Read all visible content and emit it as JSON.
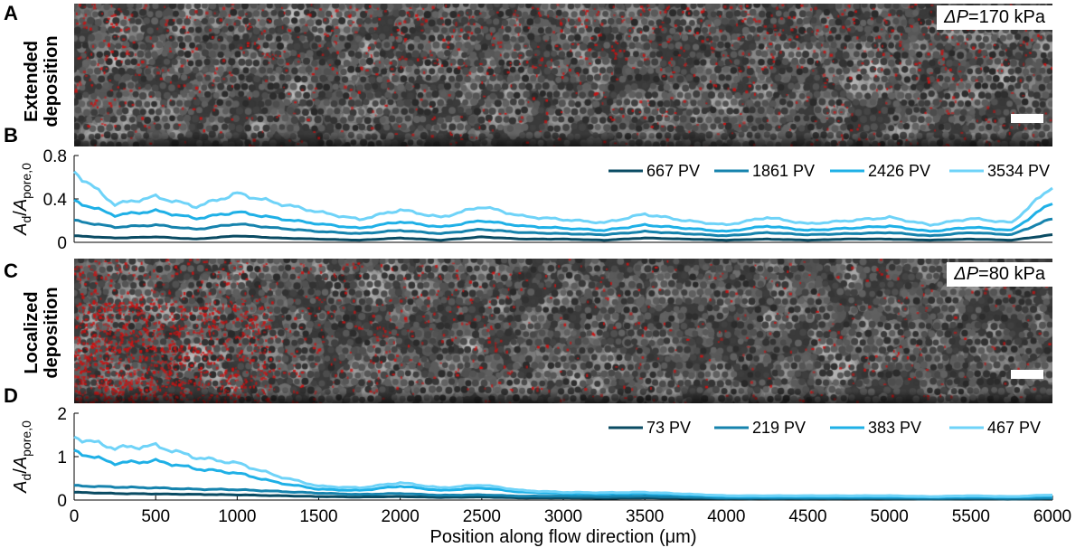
{
  "panels": {
    "a": {
      "letter": "A",
      "row_label_1": "Extended",
      "row_label_2": "deposition",
      "dp_prefix": "ΔP",
      "dp_value": "=170 kPa"
    },
    "b": {
      "letter": "B"
    },
    "c": {
      "letter": "C",
      "row_label_1": "Localized",
      "row_label_2": "deposition",
      "dp_prefix": "ΔP",
      "dp_value": "=80 kPa"
    },
    "d": {
      "letter": "D"
    }
  },
  "colors": {
    "s1": "#0a4b63",
    "s2": "#1683ad",
    "s3": "#1fb0e6",
    "s4": "#6fd3f8",
    "deposit": "#d01010"
  },
  "chart_data": [
    {
      "type": "line",
      "panel": "B",
      "xlim": [
        0,
        6000
      ],
      "ylim": [
        0,
        0.8
      ],
      "yticks": [
        0,
        0.4,
        0.8
      ],
      "ytick_labels": [
        "0",
        "0.4",
        "0.8"
      ],
      "ylabel": "Ad/Apore,0",
      "legend_position": "top-right",
      "x": [
        0,
        250,
        500,
        750,
        1000,
        1250,
        1500,
        1750,
        2000,
        2250,
        2500,
        2750,
        3000,
        3250,
        3500,
        3750,
        4000,
        4250,
        4500,
        4750,
        5000,
        5250,
        5500,
        5750,
        6000
      ],
      "series": [
        {
          "name": "667 PV",
          "color": "#0a4b63",
          "values": [
            0.06,
            0.04,
            0.05,
            0.03,
            0.06,
            0.04,
            0.03,
            0.02,
            0.04,
            0.02,
            0.05,
            0.03,
            0.03,
            0.02,
            0.04,
            0.03,
            0.02,
            0.03,
            0.02,
            0.03,
            0.03,
            0.02,
            0.03,
            0.02,
            0.07
          ]
        },
        {
          "name": "1861 PV",
          "color": "#1683ad",
          "values": [
            0.2,
            0.14,
            0.16,
            0.12,
            0.17,
            0.13,
            0.1,
            0.08,
            0.11,
            0.08,
            0.12,
            0.09,
            0.08,
            0.07,
            0.1,
            0.08,
            0.06,
            0.09,
            0.07,
            0.08,
            0.09,
            0.06,
            0.09,
            0.07,
            0.22
          ]
        },
        {
          "name": "2426 PV",
          "color": "#1fb0e6",
          "values": [
            0.38,
            0.25,
            0.29,
            0.22,
            0.28,
            0.22,
            0.17,
            0.13,
            0.19,
            0.14,
            0.2,
            0.15,
            0.13,
            0.11,
            0.16,
            0.13,
            0.1,
            0.15,
            0.11,
            0.13,
            0.15,
            0.1,
            0.14,
            0.11,
            0.37
          ]
        },
        {
          "name": "3534 PV",
          "color": "#6fd3f8",
          "values": [
            0.65,
            0.35,
            0.42,
            0.33,
            0.45,
            0.36,
            0.28,
            0.21,
            0.3,
            0.23,
            0.33,
            0.24,
            0.21,
            0.18,
            0.26,
            0.2,
            0.16,
            0.23,
            0.17,
            0.2,
            0.23,
            0.16,
            0.22,
            0.18,
            0.52
          ]
        }
      ]
    },
    {
      "type": "line",
      "panel": "D",
      "xlim": [
        0,
        6000
      ],
      "ylim": [
        0,
        2
      ],
      "yticks": [
        0,
        1,
        2
      ],
      "ytick_labels": [
        "0",
        "1",
        "2"
      ],
      "ylabel": "Ad/Apore,0",
      "xlabel": "Position along flow direction (μm)",
      "xticks": [
        0,
        500,
        1000,
        1500,
        2000,
        2500,
        3000,
        3500,
        4000,
        4500,
        5000,
        5500,
        6000
      ],
      "xtick_labels": [
        "0",
        "500",
        "1000",
        "1500",
        "2000",
        "2500",
        "3000",
        "3500",
        "4000",
        "4500",
        "5000",
        "5500",
        "6000"
      ],
      "legend_position": "top-right",
      "x": [
        0,
        250,
        500,
        750,
        1000,
        1250,
        1500,
        1750,
        2000,
        2250,
        2500,
        2750,
        3000,
        3250,
        3500,
        3750,
        4000,
        4250,
        4500,
        4750,
        5000,
        5250,
        5500,
        5750,
        6000
      ],
      "series": [
        {
          "name": "73 PV",
          "color": "#0a4b63",
          "values": [
            0.18,
            0.15,
            0.14,
            0.13,
            0.12,
            0.1,
            0.08,
            0.07,
            0.08,
            0.06,
            0.07,
            0.05,
            0.05,
            0.04,
            0.05,
            0.04,
            0.03,
            0.03,
            0.03,
            0.03,
            0.03,
            0.02,
            0.03,
            0.02,
            0.03
          ]
        },
        {
          "name": "219 PV",
          "color": "#1683ad",
          "values": [
            0.33,
            0.3,
            0.28,
            0.25,
            0.24,
            0.2,
            0.16,
            0.13,
            0.15,
            0.11,
            0.12,
            0.09,
            0.09,
            0.08,
            0.09,
            0.07,
            0.05,
            0.05,
            0.05,
            0.05,
            0.05,
            0.04,
            0.05,
            0.04,
            0.05
          ]
        },
        {
          "name": "383 PV",
          "color": "#1fb0e6",
          "values": [
            1.12,
            0.85,
            0.9,
            0.72,
            0.62,
            0.4,
            0.25,
            0.22,
            0.32,
            0.22,
            0.28,
            0.18,
            0.15,
            0.14,
            0.15,
            0.12,
            0.08,
            0.08,
            0.08,
            0.08,
            0.08,
            0.07,
            0.08,
            0.07,
            0.09
          ]
        },
        {
          "name": "467 PV",
          "color": "#6fd3f8",
          "values": [
            1.45,
            1.2,
            1.25,
            0.98,
            0.85,
            0.55,
            0.32,
            0.28,
            0.4,
            0.28,
            0.35,
            0.22,
            0.18,
            0.17,
            0.18,
            0.14,
            0.1,
            0.1,
            0.1,
            0.1,
            0.1,
            0.08,
            0.1,
            0.08,
            0.12
          ]
        }
      ]
    }
  ]
}
